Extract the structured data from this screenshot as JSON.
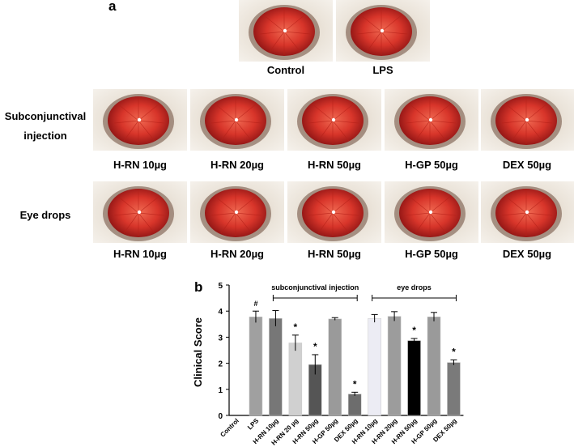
{
  "panel_a": {
    "letter": "a",
    "top_row": [
      {
        "label": "Control"
      },
      {
        "label": "LPS"
      }
    ],
    "rows": [
      {
        "label_line1": "Subconjunctival",
        "label_line2": "injection",
        "captions": [
          "H-RN 10µg",
          "H-RN 20µg",
          "H-RN 50µg",
          "H-GP 50µg",
          "DEX 50µg"
        ]
      },
      {
        "label_line1": "Eye drops",
        "label_line2": "",
        "captions": [
          "H-RN 10µg",
          "H-RN 20µg",
          "H-RN 50µg",
          "H-GP 50µg",
          "DEX 50µg"
        ]
      }
    ]
  },
  "panel_b": {
    "letter": "b"
  },
  "chart_data": {
    "type": "bar",
    "ylabel": "Clinical Score",
    "ylim": [
      0,
      5
    ],
    "yticks": [
      0,
      1,
      2,
      3,
      4,
      5
    ],
    "categories": [
      "Control",
      "LPS",
      "H-RN 10µg",
      "H-RN 20 µg",
      "H-RN 50µg",
      "H-GP 50µg",
      "DEX 50µg",
      "H-RN 10µg",
      "H-RN 20µg",
      "H-RN 50µg",
      "H-GP 50µg",
      "DEX 50µg"
    ],
    "values": [
      0,
      3.78,
      3.72,
      2.78,
      1.95,
      3.7,
      0.82,
      3.72,
      3.8,
      2.87,
      3.78,
      2.03
    ],
    "errors": [
      0,
      0.22,
      0.3,
      0.3,
      0.38,
      0.05,
      0.07,
      0.15,
      0.18,
      0.08,
      0.17,
      0.1
    ],
    "bar_colors": [
      "#ffffff",
      "#a0a0a0",
      "#777777",
      "#d0d0d0",
      "#555555",
      "#9a9a9a",
      "#6d6d6d",
      "#ececf4",
      "#9c9c9c",
      "#000000",
      "#9a9a9a",
      "#7a7a7a"
    ],
    "annotations": [
      "",
      "#",
      "",
      "*",
      "*",
      "",
      "*",
      "",
      "",
      "*",
      "",
      "*"
    ],
    "groups": [
      {
        "label": "subconjunctival injection",
        "from": 2,
        "to": 6
      },
      {
        "label": "eye drops",
        "from": 7,
        "to": 11
      }
    ]
  }
}
